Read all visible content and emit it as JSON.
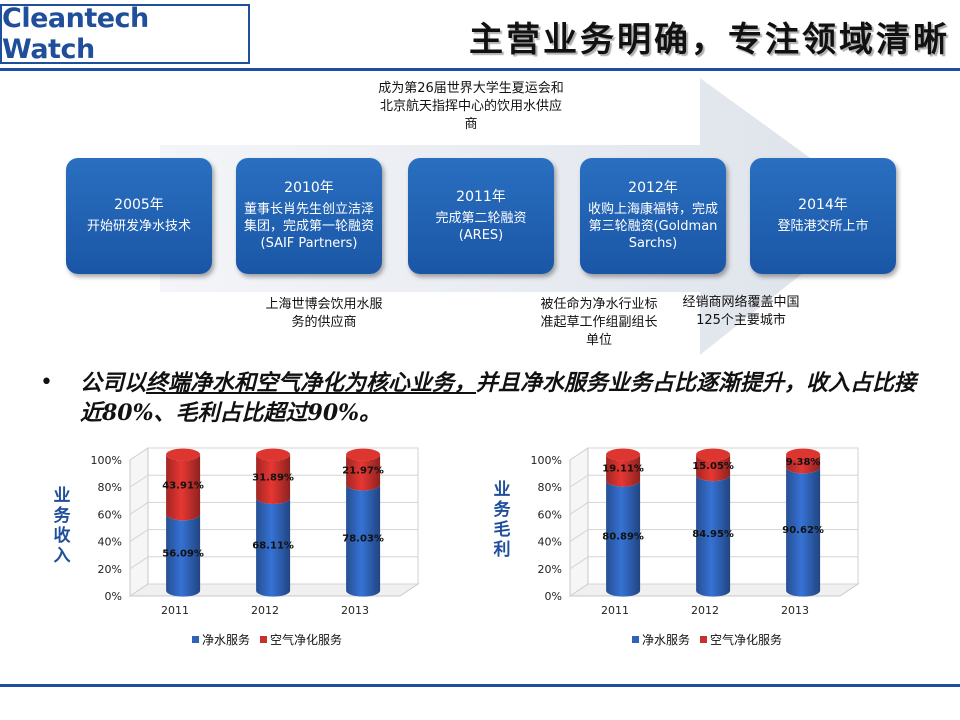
{
  "header": {
    "logo": "Cleantech Watch",
    "title": "主营业务明确，专注领域清晰"
  },
  "timeline": [
    {
      "year": "2005年",
      "text": "开始研发净水技术"
    },
    {
      "year": "2010年",
      "text": "董事长肖先生创立洁泽集团，完成第一轮融资(SAIF Partners)"
    },
    {
      "year": "2011年",
      "text": "完成第二轮融资(ARES)"
    },
    {
      "year": "2012年",
      "text": "收购上海康福特，完成第三轮融资(Goldman Sarchs)"
    },
    {
      "year": "2014年",
      "text": "登陆港交所上市"
    }
  ],
  "notes": {
    "top": "成为第26届世界大学生夏运会和北京航天指挥中心的饮用水供应商",
    "expo": "上海世博会饮用水服务的供应商",
    "standard": "被任命为净水行业标准起草工作组副组长单位",
    "network": "经销商网络覆盖中国125个主要城市"
  },
  "bullet": {
    "p1": "公司以",
    "p2": "终端净水和空气净化为核心业务，",
    "p3": "并且净水服务业务占比逐渐提升，收入占比接近80%、毛利占比超过90%。"
  },
  "labels": {
    "revenue": "业务收入",
    "margin": "业务毛利"
  },
  "chart_data": [
    {
      "type": "bar",
      "stacked": true,
      "style": "3d-cylinder",
      "categories": [
        "2011",
        "2012",
        "2013"
      ],
      "series": [
        {
          "name": "净水服务",
          "color": "#2f63b8",
          "values": [
            56.09,
            68.11,
            78.03
          ],
          "labels": [
            "56.09%",
            "68.11%",
            "78.03%"
          ]
        },
        {
          "name": "空气净化服务",
          "color": "#c9302c",
          "values": [
            43.91,
            31.89,
            21.97
          ],
          "labels": [
            "43.91%",
            "31.89%",
            "21.97%"
          ]
        }
      ],
      "yticks": [
        "0%",
        "20%",
        "40%",
        "60%",
        "80%",
        "100%"
      ],
      "ylim": [
        0,
        100
      ],
      "legend": "bottom"
    },
    {
      "type": "bar",
      "stacked": true,
      "style": "3d-cylinder",
      "categories": [
        "2011",
        "2012",
        "2013"
      ],
      "series": [
        {
          "name": "净水服务",
          "color": "#2f63b8",
          "values": [
            80.89,
            84.95,
            90.62
          ],
          "labels": [
            "80.89%",
            "84.95%",
            "90.62%"
          ]
        },
        {
          "name": "空气净化服务",
          "color": "#c9302c",
          "values": [
            19.11,
            15.05,
            9.38
          ],
          "labels": [
            "19.11%",
            "15.05%",
            "9.38%"
          ]
        }
      ],
      "yticks": [
        "0%",
        "20%",
        "40%",
        "60%",
        "80%",
        "100%"
      ],
      "ylim": [
        0,
        100
      ],
      "legend": "bottom"
    }
  ]
}
